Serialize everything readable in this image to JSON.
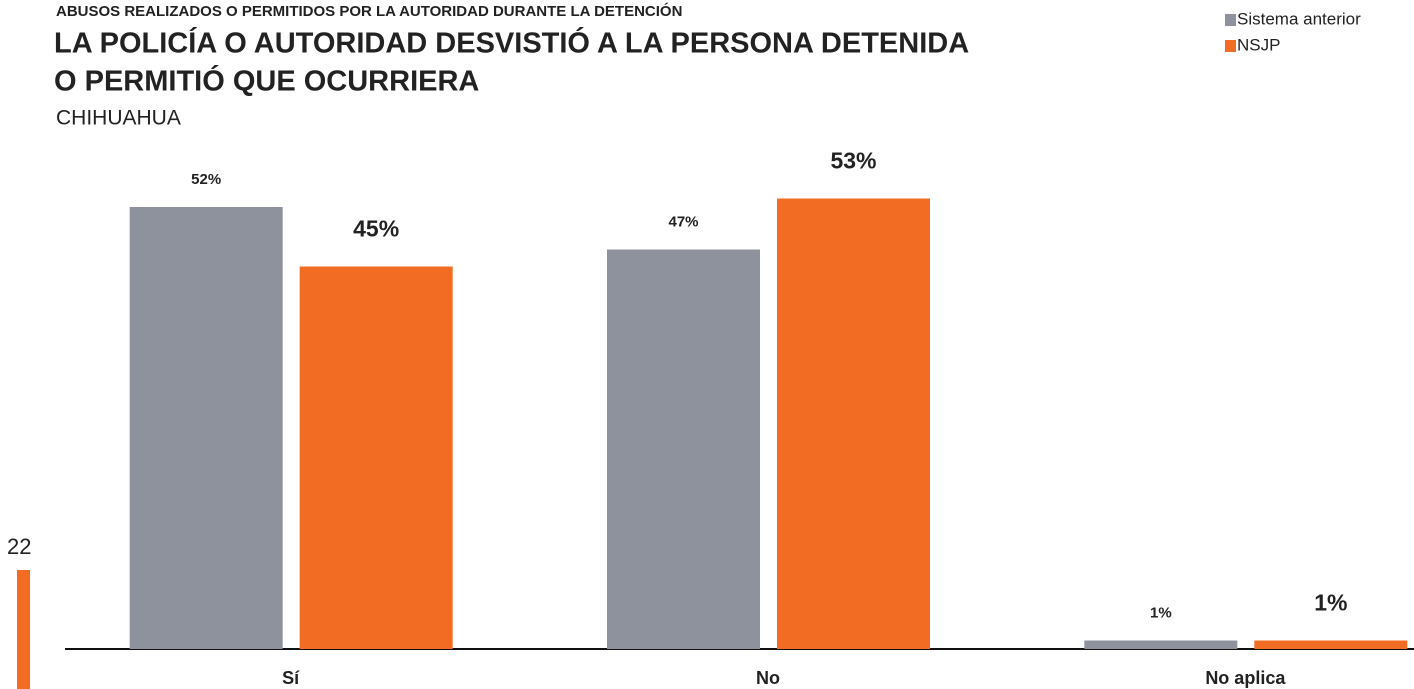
{
  "chart_data": {
    "type": "bar",
    "kicker": "ABUSOS REALIZADOS O PERMITIDOS POR LA AUTORIDAD DURANTE LA DETENCIÓN",
    "title": [
      "LA POLICÍA O AUTORIDAD DESVISTIÓ A LA PERSONA DETENIDA",
      "O PERMITIÓ QUE OCURRIERA"
    ],
    "subtitle": "CHIHUAHUA",
    "page_number": "22",
    "categories": [
      "Sí",
      "No",
      "No aplica"
    ],
    "ylim": [
      0,
      60
    ],
    "legend": "top-right",
    "series": [
      {
        "name": "Sistema anterior",
        "color": "#8e929c",
        "values": [
          52,
          47,
          1
        ],
        "value_labels": [
          "52%",
          "47%",
          "1%"
        ]
      },
      {
        "name": "NSJP",
        "color": "#f26c23",
        "values": [
          45,
          53,
          1
        ],
        "value_labels": [
          "45%",
          "53%",
          "1%"
        ]
      }
    ]
  }
}
